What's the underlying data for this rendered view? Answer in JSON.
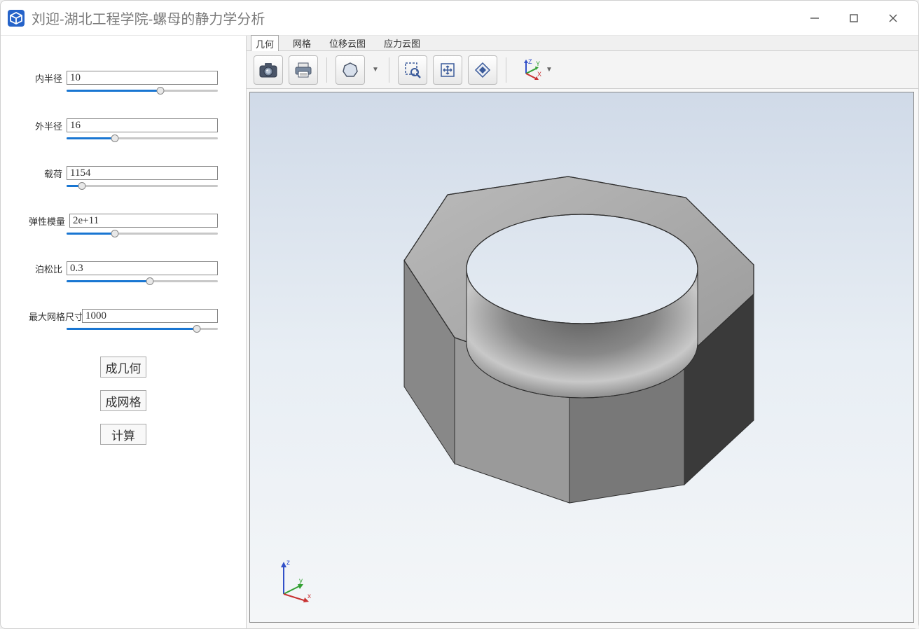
{
  "window": {
    "title": "刘迎-湖北工程学院-螺母的静力学分析"
  },
  "params": [
    {
      "label": "内半径",
      "value": "10",
      "slider_percent": 62
    },
    {
      "label": "外半径",
      "value": "16",
      "slider_percent": 32
    },
    {
      "label": "载荷",
      "value": "1154",
      "slider_percent": 10
    },
    {
      "label": "弹性模量",
      "value": "2e+11",
      "slider_percent": 32
    },
    {
      "label": "泊松比",
      "value": "0.3",
      "slider_percent": 55
    },
    {
      "label": "最大网格尺寸",
      "value": "1000",
      "slider_percent": 86
    }
  ],
  "buttons": {
    "geometry": "成几何",
    "mesh": "成网格",
    "compute": "计算"
  },
  "tabs": [
    {
      "label": "几何",
      "active": true
    },
    {
      "label": "网格",
      "active": false
    },
    {
      "label": "位移云图",
      "active": false
    },
    {
      "label": "应力云图",
      "active": false
    }
  ],
  "colors": {
    "slider_fill": "#1976d2",
    "viewport_top": "#d0dae8",
    "viewport_bottom": "#f4f6f8",
    "nut_light": "#c8c8c8",
    "nut_mid": "#9a9a9a",
    "nut_dark": "#505050",
    "edge": "#303030"
  },
  "axis_widgets": {
    "toolbar": {
      "x_color": "#c83232",
      "y_color": "#32a032",
      "z_color": "#3250c8"
    },
    "viewport": {
      "x": 40,
      "y": 60,
      "x_color": "#c83232",
      "y_color": "#32a032",
      "z_color": "#3250c8"
    }
  }
}
